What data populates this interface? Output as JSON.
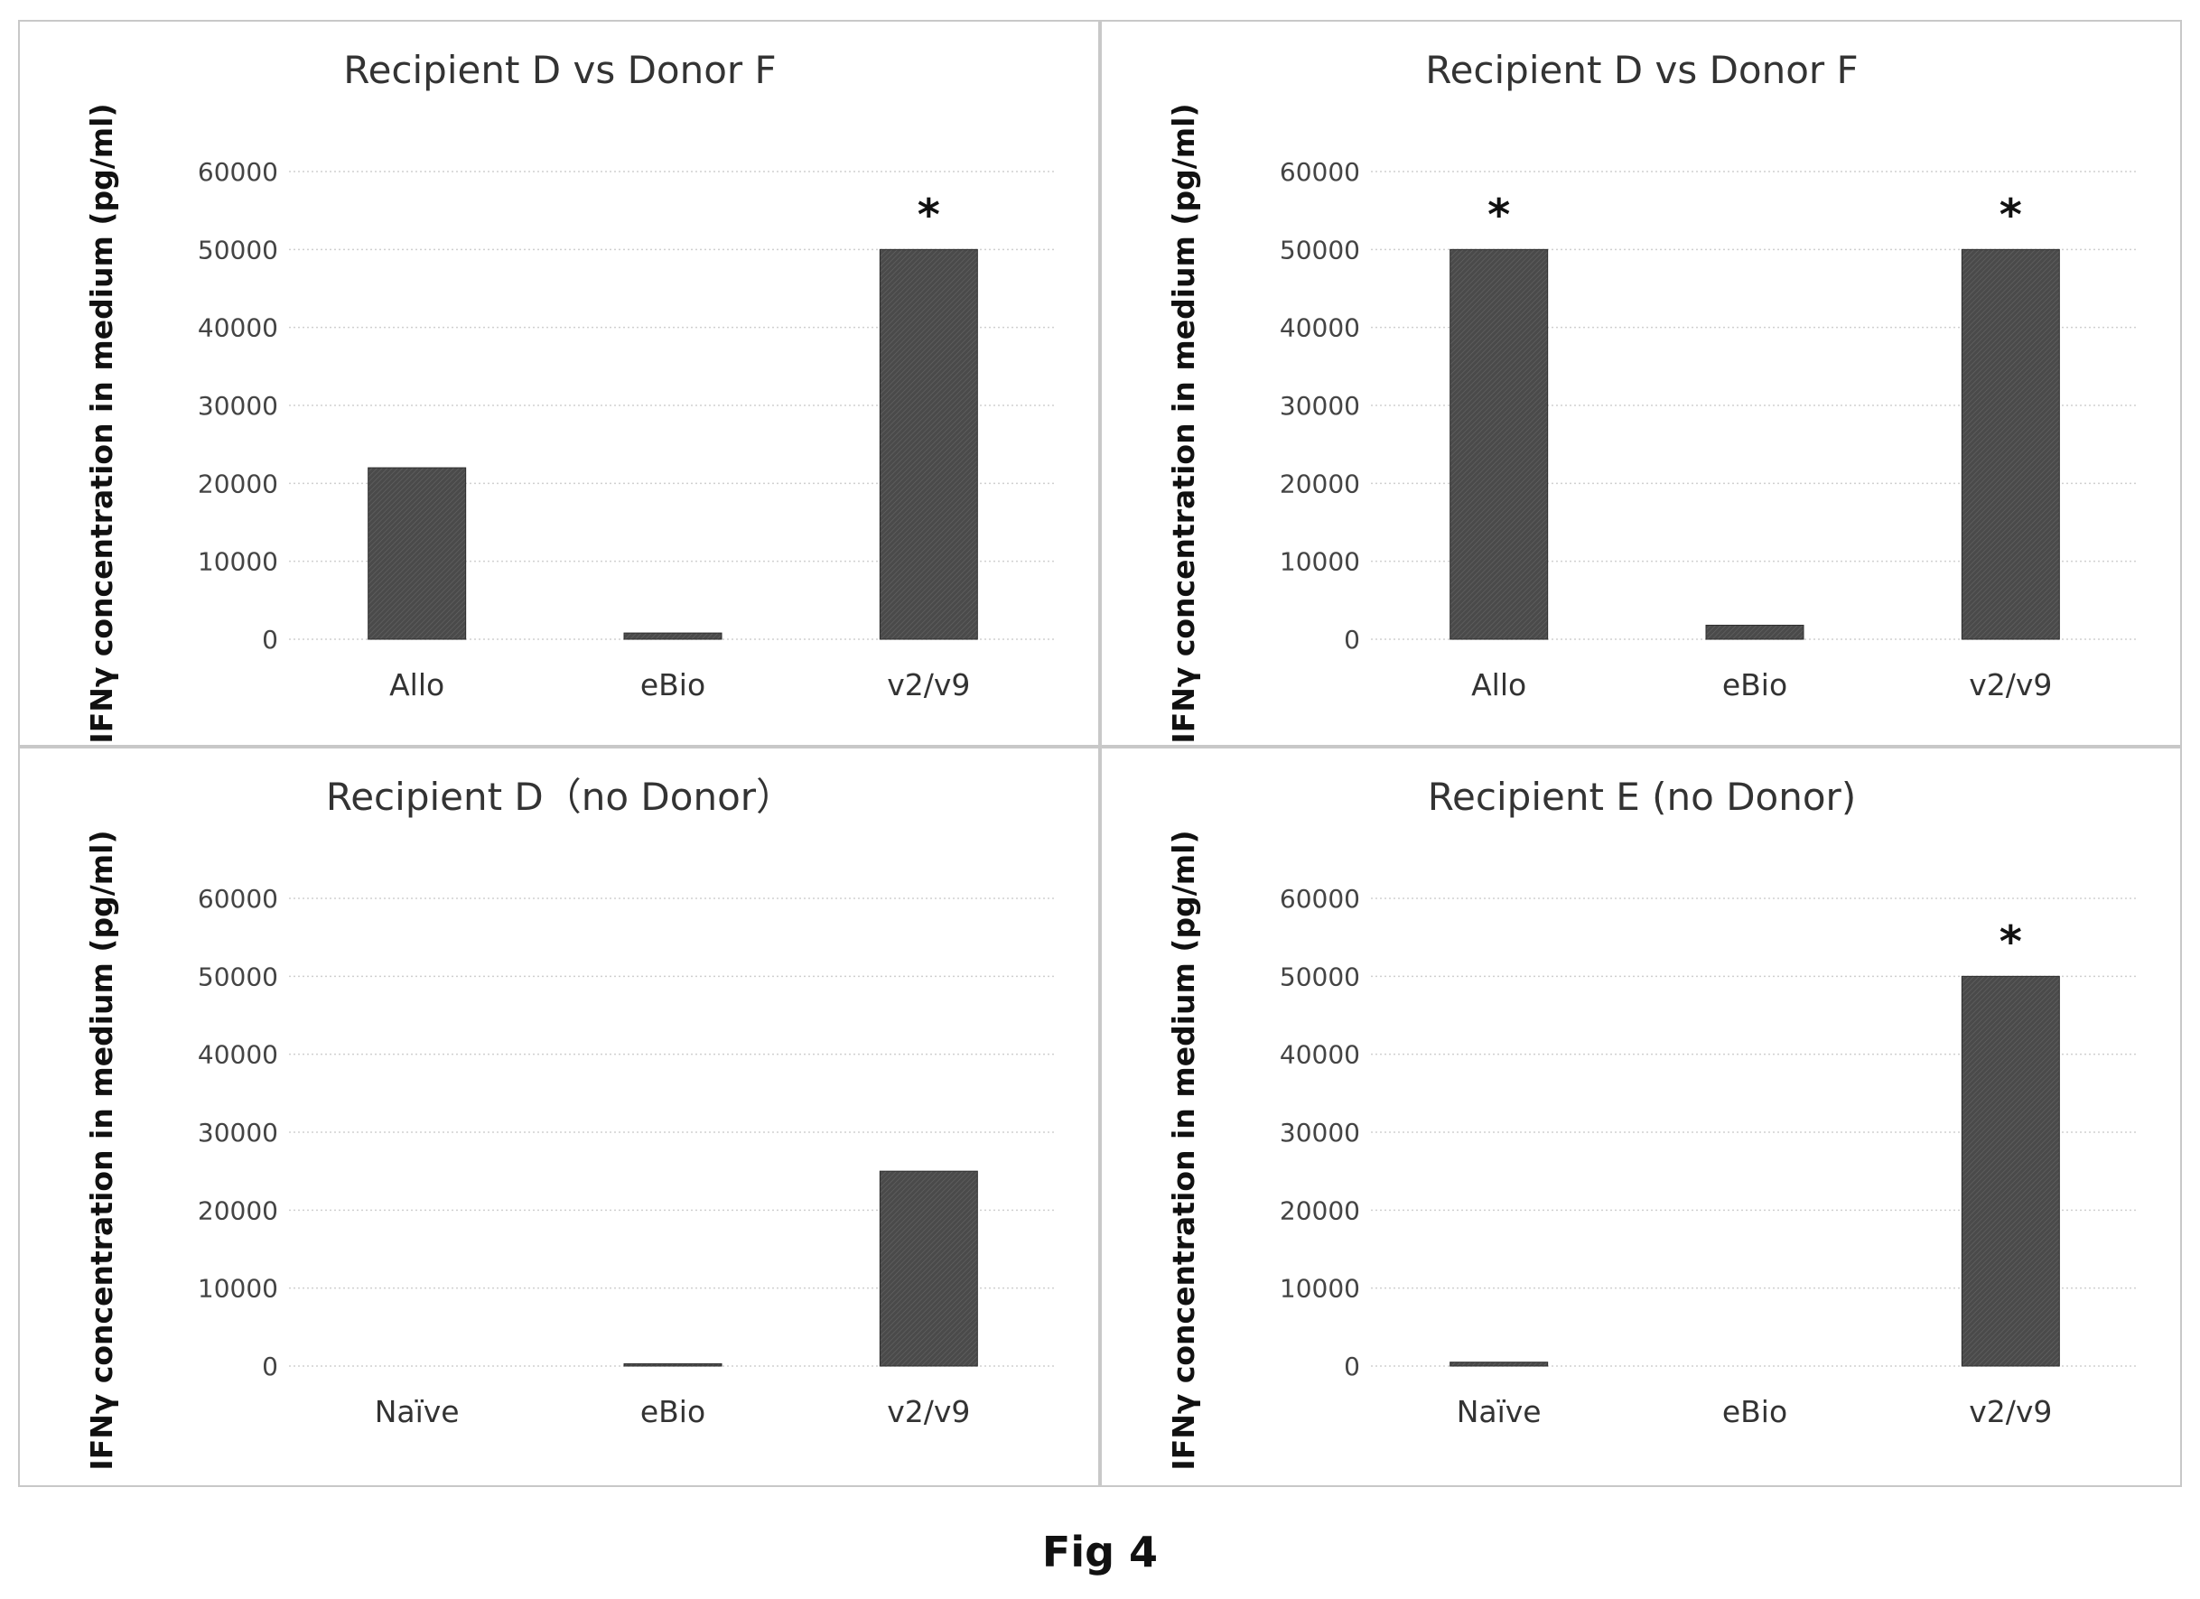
{
  "figure": {
    "caption": "Fig 4"
  },
  "chart_data": [
    {
      "type": "bar",
      "title": "Recipient  D vs Donor F",
      "ylabel": "IFNγ concentration in medium (pg/ml)",
      "xlabel": "",
      "categories": [
        "Allo",
        "eBio",
        "v2/v9"
      ],
      "values": [
        22000,
        800,
        50000
      ],
      "annotations": [
        "",
        "",
        "*"
      ],
      "ylim": [
        0,
        60000
      ],
      "yticks": [
        "0",
        "10000",
        "20000",
        "30000",
        "40000",
        "50000",
        "60000"
      ],
      "grid": true
    },
    {
      "type": "bar",
      "title": "Recipient  D vs Donor F",
      "ylabel": "IFNγ concentration in medium (pg/ml)",
      "xlabel": "",
      "categories": [
        "Allo",
        "eBio",
        "v2/v9"
      ],
      "values": [
        50000,
        1800,
        50000
      ],
      "annotations": [
        "*",
        "",
        "*"
      ],
      "ylim": [
        0,
        60000
      ],
      "yticks": [
        "0",
        "10000",
        "20000",
        "30000",
        "40000",
        "50000",
        "60000"
      ],
      "grid": true
    },
    {
      "type": "bar",
      "title": "Recipient  D（no Donor）",
      "ylabel": "IFNγ concentration in medium (pg/ml)",
      "xlabel": "",
      "categories": [
        "Naïve",
        "eBio",
        "v2/v9"
      ],
      "values": [
        0,
        300,
        25000
      ],
      "annotations": [
        "",
        "",
        ""
      ],
      "ylim": [
        0,
        60000
      ],
      "yticks": [
        "0",
        "10000",
        "20000",
        "30000",
        "40000",
        "50000",
        "60000"
      ],
      "grid": true
    },
    {
      "type": "bar",
      "title": "Recipient  E (no Donor)",
      "ylabel": "IFNγ concentration in medium (pg/ml)",
      "xlabel": "",
      "categories": [
        "Naïve",
        "eBio",
        "v2/v9"
      ],
      "values": [
        500,
        0,
        50000
      ],
      "annotations": [
        "",
        "",
        "*"
      ],
      "ylim": [
        0,
        60000
      ],
      "yticks": [
        "0",
        "10000",
        "20000",
        "30000",
        "40000",
        "50000",
        "60000"
      ],
      "grid": true
    }
  ]
}
